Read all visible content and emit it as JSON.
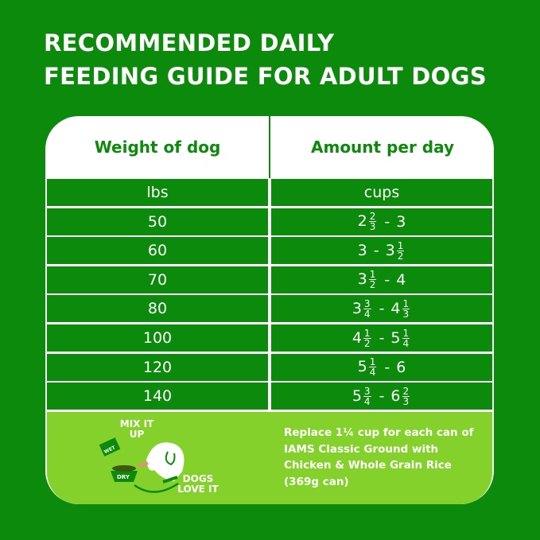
{
  "title": [
    "RECOMMENDED DAILY",
    "FEEDING GUIDE FOR ADULT DOGS"
  ],
  "table": {
    "headers": [
      "Weight of dog",
      "Amount per day"
    ],
    "units": [
      "lbs",
      "cups"
    ],
    "rows": [
      {
        "weight": "50",
        "low": {
          "whole": "2",
          "num": "2",
          "den": "3"
        },
        "high": {
          "whole": "3"
        }
      },
      {
        "weight": "60",
        "low": {
          "whole": "3"
        },
        "high": {
          "whole": "3",
          "num": "1",
          "den": "2"
        }
      },
      {
        "weight": "70",
        "low": {
          "whole": "3",
          "num": "1",
          "den": "2"
        },
        "high": {
          "whole": "4"
        }
      },
      {
        "weight": "80",
        "low": {
          "whole": "3",
          "num": "3",
          "den": "4"
        },
        "high": {
          "whole": "4",
          "num": "1",
          "den": "3"
        }
      },
      {
        "weight": "100",
        "low": {
          "whole": "4",
          "num": "1",
          "den": "2"
        },
        "high": {
          "whole": "5",
          "num": "1",
          "den": "4"
        }
      },
      {
        "weight": "120",
        "low": {
          "whole": "5",
          "num": "1",
          "den": "4"
        },
        "high": {
          "whole": "6"
        }
      },
      {
        "weight": "140",
        "low": {
          "whole": "5",
          "num": "3",
          "den": "4"
        },
        "high": {
          "whole": "6",
          "num": "2",
          "den": "3"
        }
      }
    ],
    "separator": "-"
  },
  "footer": {
    "illustration": {
      "mix": "MIX IT UP",
      "wet": "WET",
      "dry": "DRY",
      "love": "DOGS LOVE IT"
    },
    "note": "Replace 1¼ cup for each can of IAMS Classic Ground with Chicken & Whole Grain Rice (369g can)"
  },
  "colors": {
    "background": "#0b8a0b",
    "panel": "#ffffff",
    "footer": "#84d12b",
    "text": "#ffffff"
  }
}
